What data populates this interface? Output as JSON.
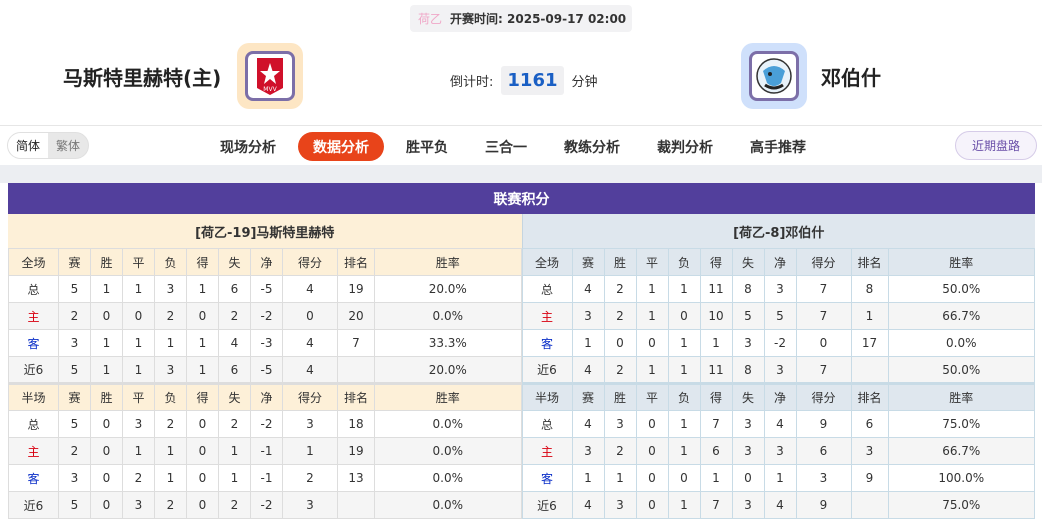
{
  "header": {
    "league": "荷乙",
    "kickoff_label": "开赛时间:",
    "kickoff_time": "2025-09-17 02:00",
    "home_team": "马斯特里赫特(主)",
    "away_team": "邓伯什",
    "countdown_label": "倒计时:",
    "countdown_value": "1161",
    "countdown_unit": "分钟",
    "home_logo_text": "MVV"
  },
  "nav": {
    "lang": [
      "简体",
      "繁体"
    ],
    "tabs": [
      "现场分析",
      "数据分析",
      "胜平负",
      "三合一",
      "教练分析",
      "裁判分析",
      "高手推荐"
    ],
    "active_tab": "数据分析",
    "recent": "近期盘路"
  },
  "colors": {
    "title_bar": "#523f9c",
    "active_tab": "#e8441a",
    "home_label": "#d8000f",
    "away_label": "#0a2ec8"
  },
  "standings": {
    "title": "联赛积分",
    "columns_full": [
      "全场",
      "赛",
      "胜",
      "平",
      "负",
      "得",
      "失",
      "净",
      "得分",
      "排名",
      "胜率"
    ],
    "columns_half": [
      "半场",
      "赛",
      "胜",
      "平",
      "负",
      "得",
      "失",
      "净",
      "得分",
      "排名",
      "胜率"
    ],
    "home": {
      "name": "[荷乙-19]马斯特里赫特",
      "full": [
        [
          "总",
          "5",
          "1",
          "1",
          "3",
          "1",
          "6",
          "-5",
          "4",
          "19",
          "20.0%"
        ],
        [
          "主",
          "2",
          "0",
          "0",
          "2",
          "0",
          "2",
          "-2",
          "0",
          "20",
          "0.0%"
        ],
        [
          "客",
          "3",
          "1",
          "1",
          "1",
          "1",
          "4",
          "-3",
          "4",
          "7",
          "33.3%"
        ],
        [
          "近6",
          "5",
          "1",
          "1",
          "3",
          "1",
          "6",
          "-5",
          "4",
          "",
          "20.0%"
        ]
      ],
      "half": [
        [
          "总",
          "5",
          "0",
          "3",
          "2",
          "0",
          "2",
          "-2",
          "3",
          "18",
          "0.0%"
        ],
        [
          "主",
          "2",
          "0",
          "1",
          "1",
          "0",
          "1",
          "-1",
          "1",
          "19",
          "0.0%"
        ],
        [
          "客",
          "3",
          "0",
          "2",
          "1",
          "0",
          "1",
          "-1",
          "2",
          "13",
          "0.0%"
        ],
        [
          "近6",
          "5",
          "0",
          "3",
          "2",
          "0",
          "2",
          "-2",
          "3",
          "",
          "0.0%"
        ]
      ]
    },
    "away": {
      "name": "[荷乙-8]邓伯什",
      "full": [
        [
          "总",
          "4",
          "2",
          "1",
          "1",
          "11",
          "8",
          "3",
          "7",
          "8",
          "50.0%"
        ],
        [
          "主",
          "3",
          "2",
          "1",
          "0",
          "10",
          "5",
          "5",
          "7",
          "1",
          "66.7%"
        ],
        [
          "客",
          "1",
          "0",
          "0",
          "1",
          "1",
          "3",
          "-2",
          "0",
          "17",
          "0.0%"
        ],
        [
          "近6",
          "4",
          "2",
          "1",
          "1",
          "11",
          "8",
          "3",
          "7",
          "",
          "50.0%"
        ]
      ],
      "half": [
        [
          "总",
          "4",
          "3",
          "0",
          "1",
          "7",
          "3",
          "4",
          "9",
          "6",
          "75.0%"
        ],
        [
          "主",
          "3",
          "2",
          "0",
          "1",
          "6",
          "3",
          "3",
          "6",
          "3",
          "66.7%"
        ],
        [
          "客",
          "1",
          "1",
          "0",
          "0",
          "1",
          "0",
          "1",
          "3",
          "9",
          "100.0%"
        ],
        [
          "近6",
          "4",
          "3",
          "0",
          "1",
          "7",
          "3",
          "4",
          "9",
          "",
          "75.0%"
        ]
      ]
    }
  }
}
